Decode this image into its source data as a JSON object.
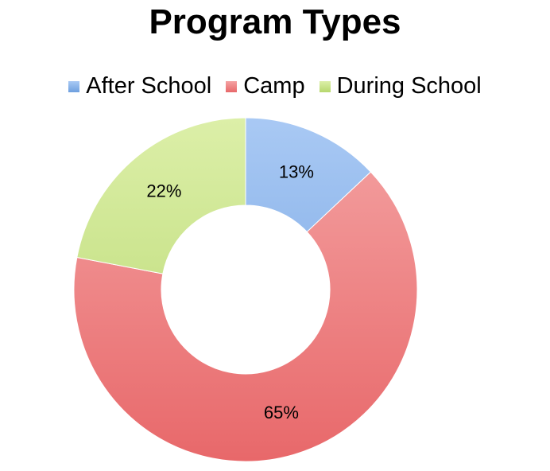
{
  "chart_data": {
    "type": "pie",
    "title": "Program Types",
    "legend_position": "top",
    "donut": true,
    "categories": [
      "After School",
      "Camp",
      "During School"
    ],
    "values": [
      13,
      65,
      22
    ],
    "labels": [
      "13%",
      "65%",
      "22%"
    ],
    "colors": [
      "#6e9fdf",
      "#e8686a",
      "#b6d76e"
    ],
    "colors_light": [
      "#a9c9f4",
      "#f4a3a3",
      "#dcefa8"
    ]
  }
}
